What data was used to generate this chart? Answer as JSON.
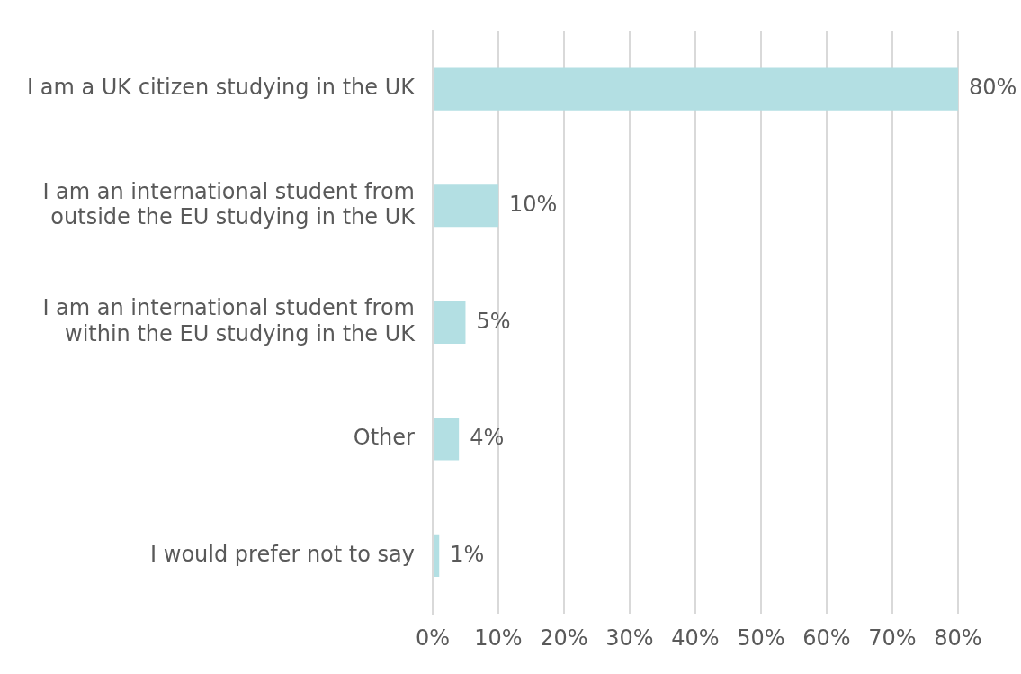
{
  "chart_data": {
    "type": "bar",
    "orientation": "horizontal",
    "categories": [
      "I am a UK citizen studying in the UK",
      "I am an international student from outside the EU studying in the UK",
      "I am an international student from within the EU studying in the UK",
      "Other",
      "I would prefer not to say"
    ],
    "values": [
      80,
      10,
      5,
      4,
      1
    ],
    "value_labels": [
      "80%",
      "10%",
      "5%",
      "4%",
      "1%"
    ],
    "color": "#b3dfe3",
    "xlim": [
      0,
      80
    ],
    "xticks": [
      {
        "value": 0,
        "label": "0%"
      },
      {
        "value": 10,
        "label": "10%"
      },
      {
        "value": 20,
        "label": "20%"
      },
      {
        "value": 30,
        "label": "30%"
      },
      {
        "value": 40,
        "label": "40%"
      },
      {
        "value": 50,
        "label": "50%"
      },
      {
        "value": 60,
        "label": "60%"
      },
      {
        "value": 70,
        "label": "70%"
      },
      {
        "value": 80,
        "label": "80%"
      }
    ],
    "grid": "x"
  }
}
